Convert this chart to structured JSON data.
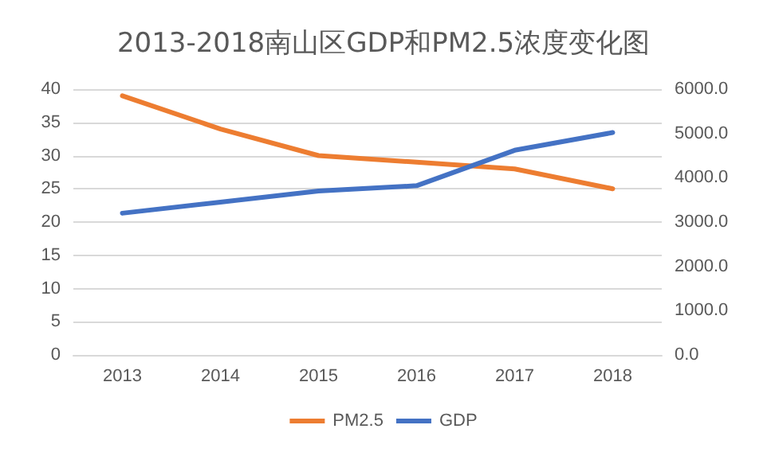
{
  "chart_data": {
    "type": "line",
    "title": "2013-2018南山区GDP和PM2.5浓度变化图",
    "categories": [
      "2013",
      "2014",
      "2015",
      "2016",
      "2017",
      "2018"
    ],
    "series": [
      {
        "name": "PM2.5",
        "color": "#ed7d31",
        "values": [
          39,
          34,
          30,
          29,
          28,
          25
        ]
      },
      {
        "name": "GDP",
        "color": "#4472c4",
        "axis": "y2",
        "values": [
          3200,
          3450,
          3700,
          3820,
          4620,
          5020
        ]
      }
    ],
    "ylim": [
      0,
      40
    ],
    "yticks": [
      0,
      5,
      10,
      15,
      20,
      25,
      30,
      35,
      40
    ],
    "y2lim": [
      0,
      6000
    ],
    "y2ticks": [
      {
        "value": 0,
        "label": "0.0"
      },
      {
        "value": 1000,
        "label": "1000.0"
      },
      {
        "value": 2000,
        "label": "2000.0"
      },
      {
        "value": 3000,
        "label": "3000.0"
      },
      {
        "value": 4000,
        "label": "4000.0"
      },
      {
        "value": 5000,
        "label": "5000.0"
      },
      {
        "value": 6000,
        "label": "6000.0"
      }
    ],
    "grid": "y",
    "legend": "bottom",
    "marker": "none",
    "line_style": "solid"
  }
}
